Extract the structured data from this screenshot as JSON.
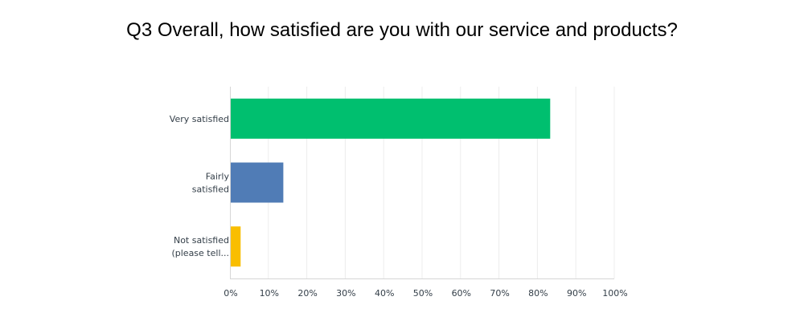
{
  "chart_data": {
    "type": "bar",
    "orientation": "horizontal",
    "title": "Q3 Overall, how satisfied are you with our service and products?",
    "categories": [
      {
        "lines": [
          "Very satisfied"
        ]
      },
      {
        "lines": [
          "Fairly",
          "satisfied"
        ]
      },
      {
        "lines": [
          "Not satisfied",
          "(please tell..."
        ]
      }
    ],
    "values": [
      83.33,
      13.89,
      2.78
    ],
    "bar_colors": [
      "#00bf6f",
      "#507cb6",
      "#f9be00"
    ],
    "x_ticks": [
      "0%",
      "10%",
      "20%",
      "30%",
      "40%",
      "50%",
      "60%",
      "70%",
      "80%",
      "90%",
      "100%"
    ],
    "xlim": [
      0,
      100
    ],
    "grid": true,
    "legend": "none"
  }
}
